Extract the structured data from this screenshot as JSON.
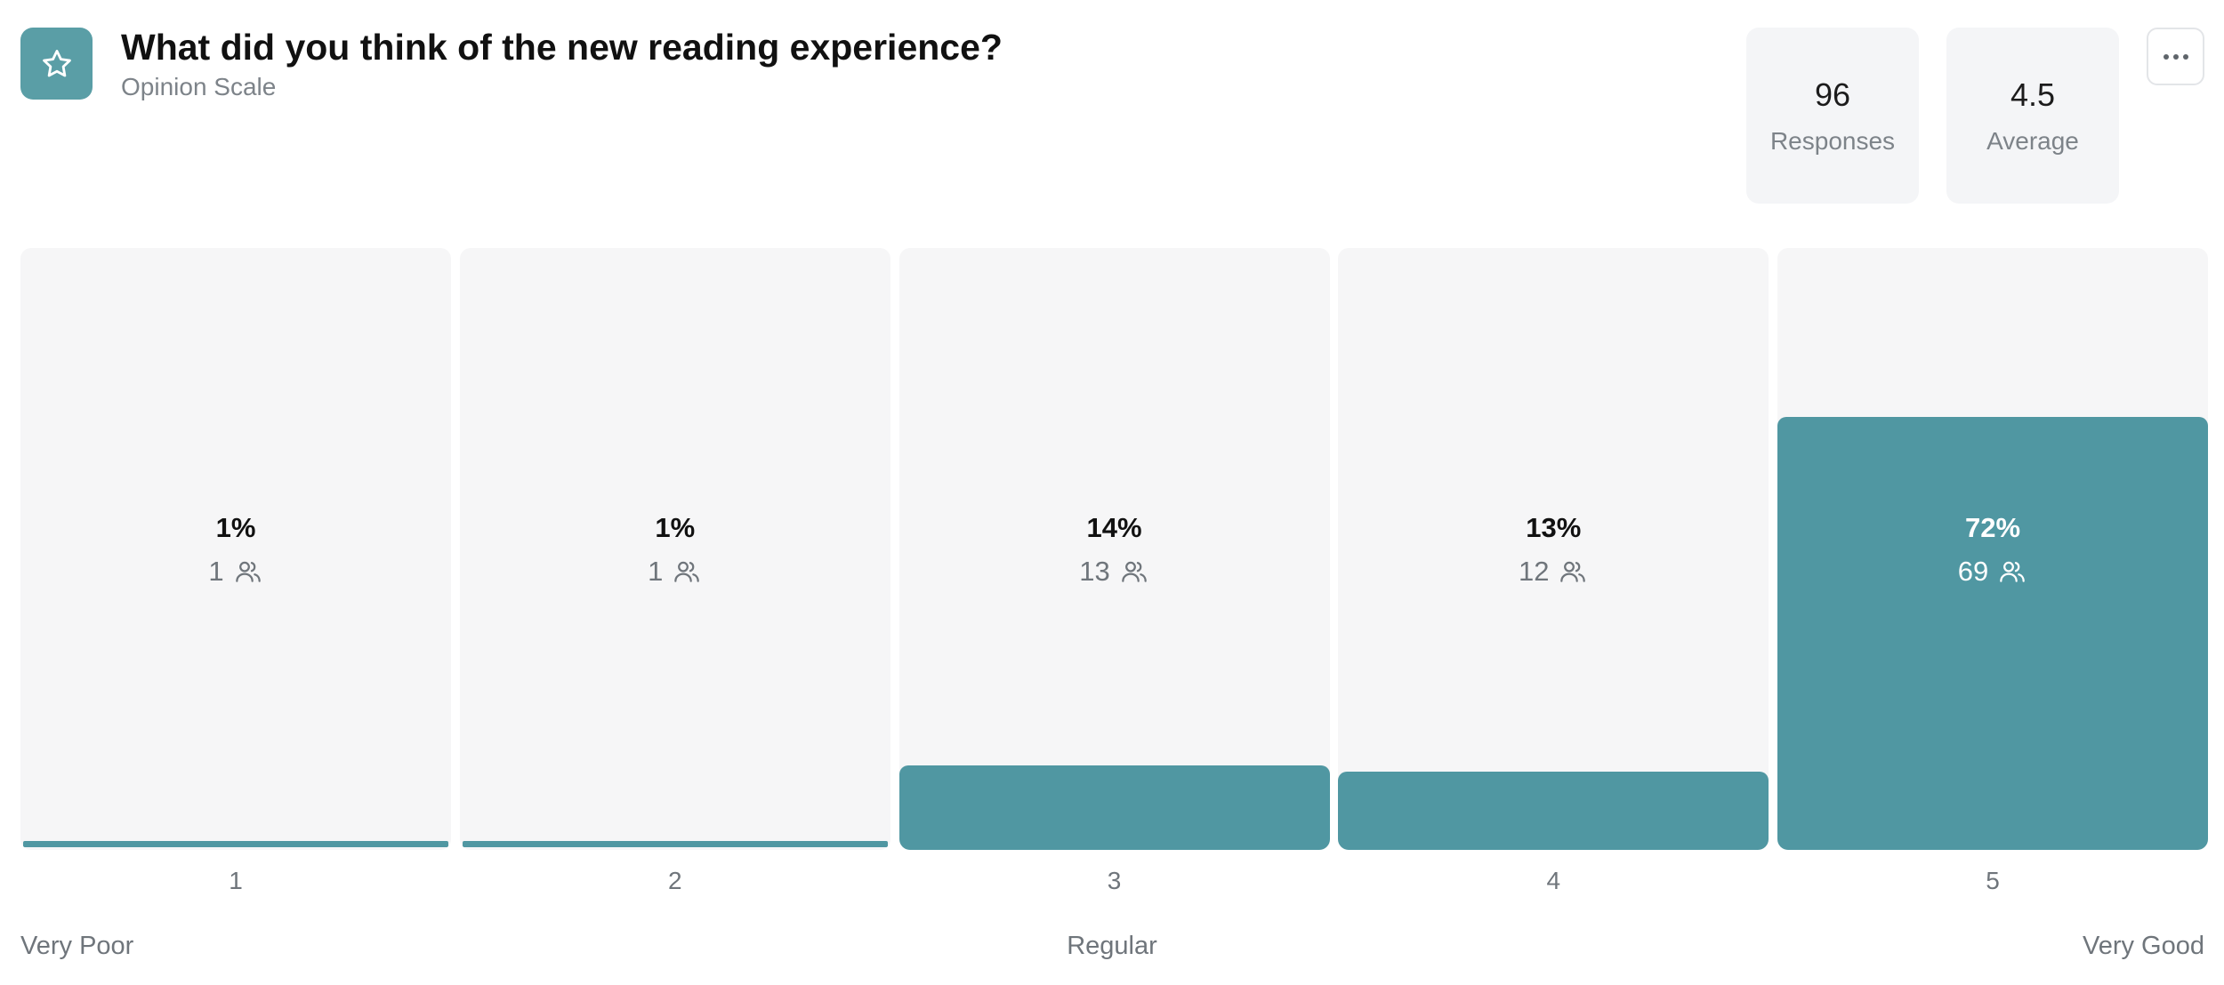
{
  "header": {
    "icon": "star-icon",
    "title": "What did you think of the new reading experience?",
    "subtitle": "Opinion Scale"
  },
  "stats": {
    "responses_value": "96",
    "responses_label": "Responses",
    "average_value": "4.5",
    "average_label": "Average"
  },
  "menu": {
    "icon": "more-horizontal-icon"
  },
  "colors": {
    "accent": "#5097a2",
    "icon_bg": "#5a9ea6",
    "column_bg": "#f6f6f7",
    "stat_bg": "#f4f5f7"
  },
  "chart_data": {
    "type": "bar",
    "categories": [
      "1",
      "2",
      "3",
      "4",
      "5"
    ],
    "values": [
      1,
      1,
      14,
      13,
      72
    ],
    "value_labels": [
      "1%",
      "1%",
      "14%",
      "13%",
      "72%"
    ],
    "counts": [
      "1",
      "1",
      "13",
      "12",
      "69"
    ],
    "ylim": [
      0,
      100
    ],
    "count_icon": "users-icon",
    "grid": false
  },
  "scale_anchors": {
    "low": "Very Poor",
    "mid": "Regular",
    "high": "Very Good"
  }
}
